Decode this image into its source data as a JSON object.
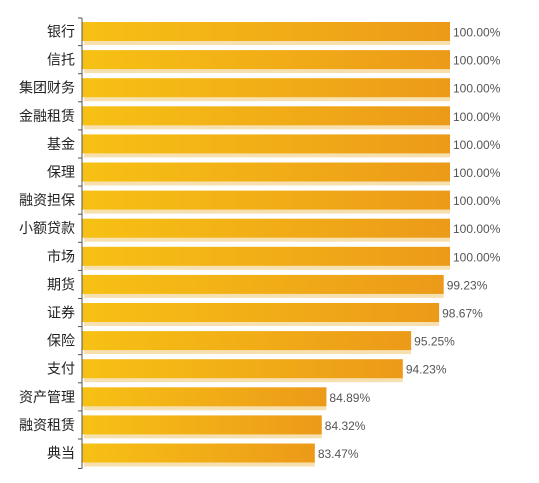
{
  "chart_data": {
    "type": "bar",
    "orientation": "horizontal",
    "categories": [
      "银行",
      "信托",
      "集团财务",
      "金融租赁",
      "基金",
      "保理",
      "融资担保",
      "小额贷款",
      "市场",
      "期货",
      "证券",
      "保险",
      "支付",
      "资产管理",
      "融资租赁",
      "典当"
    ],
    "values": [
      100.0,
      100.0,
      100.0,
      100.0,
      100.0,
      100.0,
      100.0,
      100.0,
      100.0,
      99.23,
      98.67,
      95.25,
      94.23,
      84.89,
      84.32,
      83.47
    ],
    "value_labels": [
      "100.00%",
      "100.00%",
      "100.00%",
      "100.00%",
      "100.00%",
      "100.00%",
      "100.00%",
      "100.00%",
      "100.00%",
      "99.23%",
      "98.67%",
      "95.25%",
      "94.23%",
      "84.89%",
      "84.32%",
      "83.47%"
    ],
    "xlim": [
      55,
      100
    ],
    "unit": "%",
    "grid": false,
    "legend": "none",
    "title": "",
    "xlabel": "",
    "ylabel": ""
  },
  "colors": {
    "bar_start": "#f7c114",
    "bar_end": "#ec9a19",
    "shadow": "#f5d89c",
    "axis": "#555555"
  }
}
